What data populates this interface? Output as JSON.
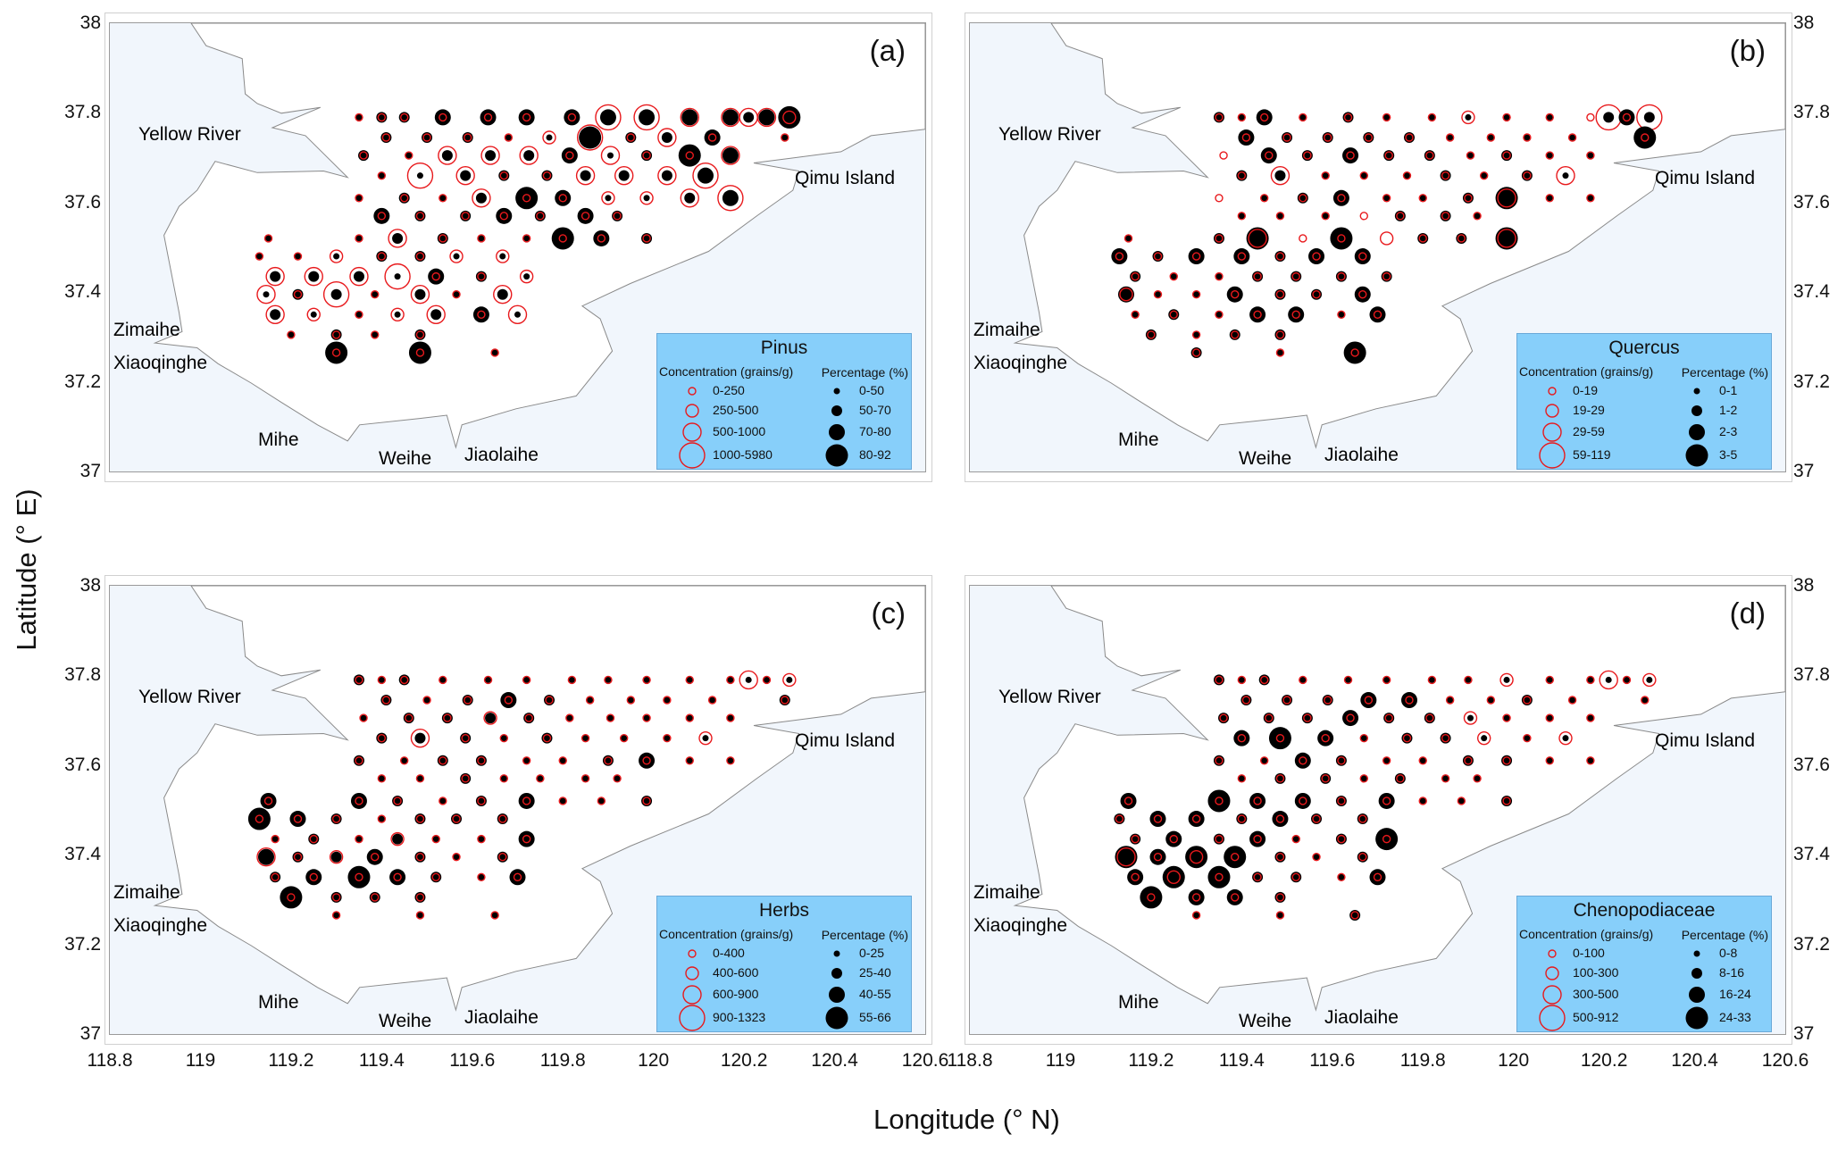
{
  "chart_data": {
    "type": "scatter",
    "subtype": "proportional-symbol map",
    "xlabel": "Longitude (° N)",
    "ylabel": "Latitude (° E)",
    "xlim": [
      118.8,
      120.6
    ],
    "ylim": [
      37,
      38
    ],
    "x_ticks": [
      "118.8",
      "119",
      "119.2",
      "119.4",
      "119.6",
      "119.8",
      "120",
      "120.2",
      "120.4",
      "120.6"
    ],
    "y_ticks": [
      "38",
      "37.8",
      "37.6",
      "37.4",
      "37.2",
      "37"
    ],
    "map_labels": [
      "Yellow River",
      "Qimu Island",
      "Zimaihe",
      "Xiaoqinghe",
      "Mihe",
      "Weihe",
      "Jiaolaihe"
    ],
    "colors": {
      "concentration_ring": "#e8191c",
      "percentage_dot": "#000000",
      "legend_bg": "#87cffa",
      "land": "#f1f6fc",
      "sea": "#ffffff"
    },
    "stations": [
      {
        "lat": 37.79,
        "lons": [
          119.35,
          119.4,
          119.45,
          119.535,
          119.635,
          119.72,
          119.82,
          119.9,
          119.985,
          120.08,
          120.17,
          120.21,
          120.25,
          120.3
        ]
      },
      {
        "lat": 37.745,
        "lons": [
          119.41,
          119.5,
          119.59,
          119.68,
          119.77,
          119.86,
          119.95,
          120.03,
          120.13,
          120.29
        ]
      },
      {
        "lat": 37.705,
        "lons": [
          119.36,
          119.46,
          119.545,
          119.64,
          119.725,
          119.815,
          119.905,
          119.985,
          120.08,
          120.17
        ]
      },
      {
        "lat": 37.66,
        "lons": [
          119.4,
          119.485,
          119.585,
          119.67,
          119.765,
          119.85,
          119.935,
          120.03,
          120.115
        ]
      },
      {
        "lat": 37.61,
        "lons": [
          119.35,
          119.45,
          119.535,
          119.62,
          119.72,
          119.8,
          119.9,
          119.985,
          120.08,
          120.17
        ]
      },
      {
        "lat": 37.57,
        "lons": [
          119.4,
          119.485,
          119.585,
          119.67,
          119.75,
          119.85,
          119.92
        ]
      },
      {
        "lat": 37.52,
        "lons": [
          119.15,
          119.35,
          119.435,
          119.535,
          119.62,
          119.72,
          119.8,
          119.885,
          119.985
        ]
      },
      {
        "lat": 37.48,
        "lons": [
          119.13,
          119.215,
          119.3,
          119.4,
          119.485,
          119.565,
          119.667
        ]
      },
      {
        "lat": 37.435,
        "lons": [
          119.165,
          119.25,
          119.35,
          119.435,
          119.52,
          119.62,
          119.72
        ]
      },
      {
        "lat": 37.395,
        "lons": [
          119.145,
          119.215,
          119.3,
          119.385,
          119.485,
          119.565,
          119.667
        ]
      },
      {
        "lat": 37.35,
        "lons": [
          119.165,
          119.25,
          119.35,
          119.435,
          119.52,
          119.62,
          119.7
        ]
      },
      {
        "lat": 37.305,
        "lons": [
          119.2,
          119.3,
          119.385,
          119.485
        ]
      },
      {
        "lat": 37.265,
        "lons": [
          119.3,
          119.485,
          119.65
        ]
      }
    ],
    "panels": [
      {
        "label": "(a)",
        "taxon": "Pinus",
        "conc_header": "Concentration (grains/g)",
        "pct_header": "Percentage (%)",
        "conc_classes": [
          "0-250",
          "250-500",
          "500-1000",
          "1000-5980"
        ],
        "pct_classes": [
          "0-50",
          "50-70",
          "70-80",
          "80-92"
        ],
        "conc": [
          "00000003322221",
          "0000130200",
          "0022202002",
          "032002223",
          "0002001123",
          "0000000",
          "002000000",
          "0010011",
          "2223001",
          "2030202",
          "2101202",
          "0000",
          "000"
        ],
        "pct": [
          "01122222222123",
          "1110031120",
          "1011120132",
          "001111112",
          "0101320012",
          "2112121",
          "001100321",
          "0001100",
          "1110210",
          "0110101",
          "1000120",
          "0101",
          "330"
        ]
      },
      {
        "label": "(b)",
        "taxon": "Quercus",
        "conc_header": "Concentration (grains/g)",
        "pct_header": "Percentage (%)",
        "conc_classes": [
          "0-19",
          "19-29",
          "29-59",
          "59-119"
        ],
        "pct_classes": [
          "0-1",
          "1-2",
          "2-3",
          "3-5"
        ],
        "conc": [
          "00000001000303",
          "0000000000",
          "0000000000",
          "020000002",
          "0000000200",
          "0000000",
          "002001002",
          "0000000",
          "0000000",
          "1000000",
          "0000000",
          "0000",
          "000"
        ],
        "pct": [
          "1020100000x121",
          "2111100003",
          "x212110100",
          "110001010",
          "x012001300",
          "000x110",
          "013x3x113",
          "2122122",
          "1001111",
          "2002112",
          "0102202",
          "1011",
          "103"
        ]
      },
      {
        "label": "(c)",
        "taxon": "Herbs",
        "conc_header": "Concentration (grains/g)",
        "pct_header": "Percentage (%)",
        "conc_classes": [
          "0-400",
          "400-600",
          "600-900",
          "900-1323"
        ],
        "pct_classes": [
          "0-25",
          "25-40",
          "40-55",
          "55-66"
        ],
        "conc": [
          "00000000000201",
          "0000000000",
          "0001000000",
          "020000001",
          "0000000000",
          "0000000",
          "000000000",
          "0000000",
          "0001000",
          "2010000",
          "0000000",
          "0000",
          "000"
        ],
        "pct": [
          "10100000000000",
          "1012100001",
          "0111100000",
          "111010000",
          "1011001200",
          "0010000",
          "221012001",
          "3210111",
          "0101002",
          "2112101",
          "1232102",
          "3111",
          "000"
        ]
      },
      {
        "label": "(d)",
        "taxon": "Chenopodiaceae",
        "conc_header": "Concentration (grains/g)",
        "pct_header": "Percentage (%)",
        "conc_classes": [
          "0-100",
          "100-300",
          "300-500",
          "500-912"
        ],
        "pct_classes": [
          "0-8",
          "8-16",
          "16-24",
          "24-33"
        ],
        "conc": [
          "00000000100201",
          "0000000000",
          "0000001000",
          "000000101",
          "0000000000",
          "0000000",
          "000000000",
          "0000000",
          "0000000",
          "2010000",
          "0100000",
          "0000",
          "000"
        ],
        "pct": [
          "10100000000000",
          "1112200100",
          "1112110000",
          "232011000",
          "1021001100",
          "0110100",
          "232212001",
          "1221211",
          "1212013",
          "3233101",
          "2331102",
          "3221",
          "001"
        ]
      }
    ]
  }
}
